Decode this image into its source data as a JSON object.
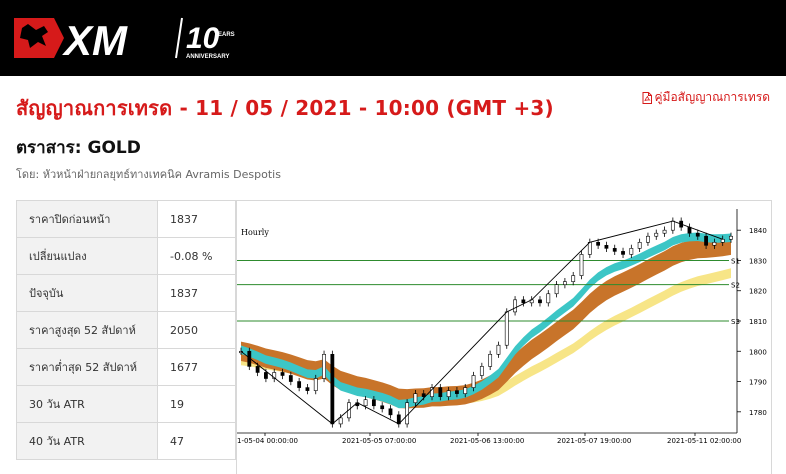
{
  "header": {
    "brand": "XM",
    "anniversary_number": "10",
    "anniversary_years": "YEARS",
    "anniversary_word": "ANNIVERSARY"
  },
  "page": {
    "title": "สัญญาณการเทรด - 11 / 05 / 2021 - 10:00 (GMT +3)",
    "guide_link": "คู่มือสัญญาณการเทรด",
    "instrument": "ตราสาร: GOLD",
    "author": "โดย: หัวหน้าฝ่ายกลยุทธ์ทางเทคนิค Avramis Despotis"
  },
  "stats": [
    {
      "label": "ราคาปิดก่อนหน้า",
      "value": "1837"
    },
    {
      "label": "เปลี่ยนแปลง",
      "value": "-0.08 %"
    },
    {
      "label": "ปัจจุบัน",
      "value": "1837"
    },
    {
      "label": "ราคาสูงสุด 52 สัปดาห์",
      "value": "2050"
    },
    {
      "label": "ราคาต่ำสุด 52 สัปดาห์",
      "value": "1677"
    },
    {
      "label": "30 วัน ATR",
      "value": "19"
    },
    {
      "label": "40 วัน ATR",
      "value": "47"
    }
  ],
  "colors": {
    "header_bg": "#000000",
    "accent_red": "#d61a1a",
    "support_line": "#2e8b2e",
    "band_orange": "#c8742a",
    "band_teal": "#3cc6c6",
    "band_yellow": "#f6e27a"
  },
  "chart_data": {
    "type": "line",
    "title": "Hourly",
    "y_ticks": [
      1780,
      1790,
      1800,
      1810,
      1820,
      1830,
      1840
    ],
    "ylim": [
      1773,
      1847
    ],
    "x_ticks": [
      "1-05-04 00:00:00",
      "2021-05-05 07:00:00",
      "2021-05-06 13:00:00",
      "2021-05-07 19:00:00",
      "2021-05-11 02:00:00"
    ],
    "levels": [
      {
        "name": "S1",
        "value": 1830
      },
      {
        "name": "S2",
        "value": 1822
      },
      {
        "name": "S3",
        "value": 1810
      }
    ],
    "series": [
      {
        "values": [
          1800,
          1795,
          1793,
          1791,
          1793,
          1792,
          1790,
          1788,
          1787,
          1791,
          1799,
          1776,
          1778,
          1783,
          1782,
          1784,
          1782,
          1781,
          1779,
          1776,
          1783,
          1786,
          1785,
          1788,
          1785,
          1787,
          1786,
          1788,
          1792,
          1795,
          1799,
          1802,
          1813,
          1817,
          1816,
          1817,
          1816,
          1819,
          1822,
          1823,
          1825,
          1832,
          1836,
          1835,
          1834,
          1833,
          1832,
          1834,
          1836,
          1838,
          1839,
          1840,
          1843,
          1841,
          1839,
          1838,
          1835,
          1836,
          1837,
          1838
        ]
      }
    ]
  }
}
